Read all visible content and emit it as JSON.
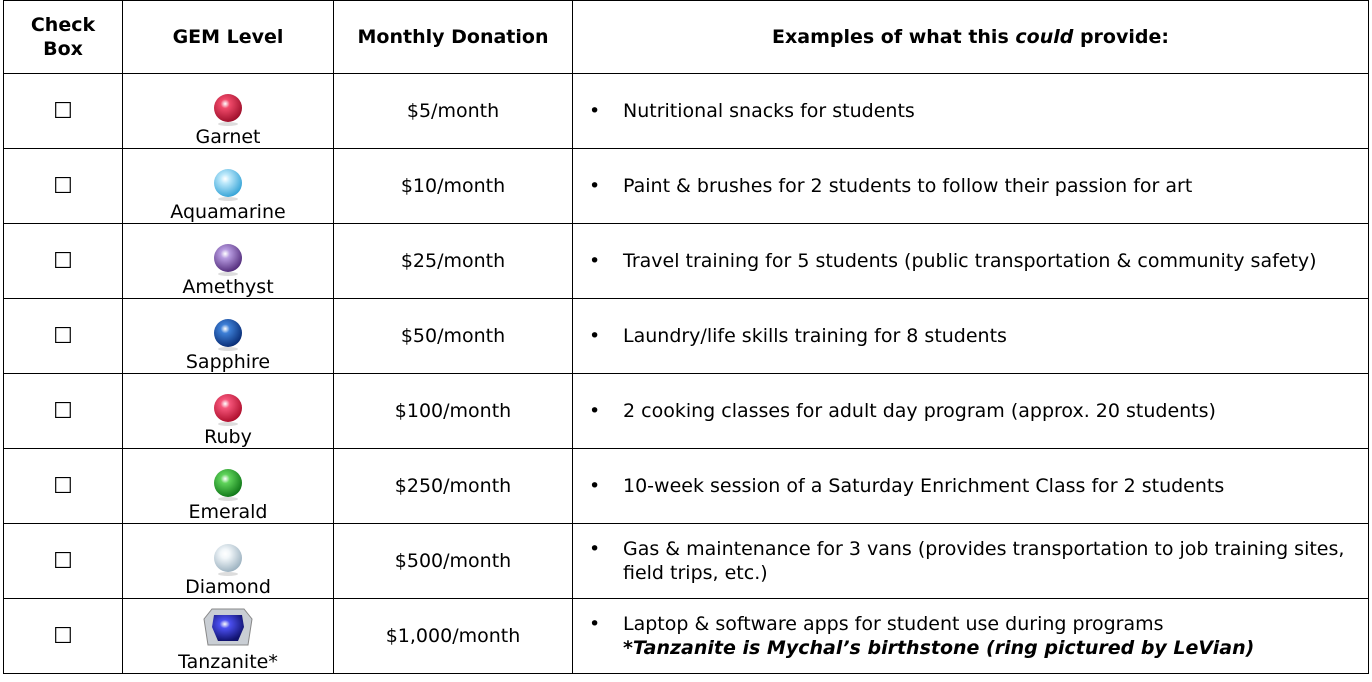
{
  "header": {
    "check": "Check Box",
    "gem": "GEM Level",
    "donation": "Monthly Donation",
    "examples_prefix": "Examples of what this ",
    "examples_emph": "could",
    "examples_suffix": " provide:"
  },
  "rows": [
    {
      "check": "☐",
      "gem": "Garnet",
      "donation": "$5/month",
      "examples": [
        "Nutritional snacks for students"
      ]
    },
    {
      "check": "☐",
      "gem": "Aquamarine",
      "donation": "$10/month",
      "examples": [
        "Paint & brushes for 2 students to follow their passion for art"
      ]
    },
    {
      "check": "☐",
      "gem": "Amethyst",
      "donation": "$25/month",
      "examples": [
        "Travel training for 5 students (public transportation & community safety)"
      ]
    },
    {
      "check": "☐",
      "gem": "Sapphire",
      "donation": "$50/month",
      "examples": [
        "Laundry/life skills training for 8 students"
      ]
    },
    {
      "check": "☐",
      "gem": "Ruby",
      "donation": "$100/month",
      "examples": [
        "2 cooking classes for adult day program (approx. 20 students)"
      ]
    },
    {
      "check": "☐",
      "gem": "Emerald",
      "donation": "$250/month",
      "examples": [
        "10-week session of a Saturday Enrichment Class for 2 students"
      ]
    },
    {
      "check": "☐",
      "gem": "Diamond",
      "donation": "$500/month",
      "examples": [
        "Gas & maintenance for 3 vans (provides transportation to job training sites, field trips, etc.)"
      ]
    },
    {
      "check": "☐",
      "gem": "Tanzanite*",
      "donation": "$1,000/month",
      "examples": [
        "Laptop & software apps for student use during programs"
      ],
      "note": "*Tanzanite is Mychal’s birthstone (ring pictured by LeVian)"
    }
  ]
}
